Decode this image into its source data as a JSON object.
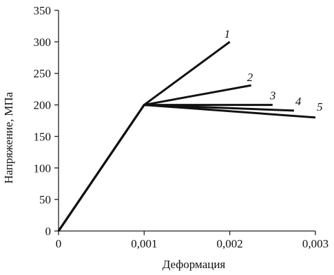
{
  "chart_data": {
    "type": "line",
    "title": "",
    "xlabel": "Деформация",
    "ylabel": "Напряжение, МПа",
    "xlim": [
      0,
      0.003
    ],
    "ylim": [
      0,
      350
    ],
    "x_ticks": [
      0,
      0.001,
      0.002,
      0.003
    ],
    "x_tick_labels": [
      "0",
      "0,001",
      "0,002",
      "0,003"
    ],
    "y_ticks": [
      0,
      50,
      100,
      150,
      200,
      250,
      300,
      350
    ],
    "y_tick_labels": [
      "0",
      "50",
      "100",
      "150",
      "200",
      "250",
      "300",
      "350"
    ],
    "grid": false,
    "legend": "none",
    "line_color": "#111111",
    "series": [
      {
        "name": "1",
        "x": [
          0,
          0.001,
          0.002
        ],
        "y": [
          0,
          200,
          300
        ]
      },
      {
        "name": "2",
        "x": [
          0,
          0.001,
          0.00225
        ],
        "y": [
          0,
          200,
          231
        ]
      },
      {
        "name": "3",
        "x": [
          0,
          0.001,
          0.0025
        ],
        "y": [
          0,
          200,
          200
        ]
      },
      {
        "name": "4",
        "x": [
          0,
          0.001,
          0.00275
        ],
        "y": [
          0,
          200,
          191
        ]
      },
      {
        "name": "5",
        "x": [
          0,
          0.001,
          0.003
        ],
        "y": [
          0,
          200,
          180
        ]
      }
    ]
  }
}
